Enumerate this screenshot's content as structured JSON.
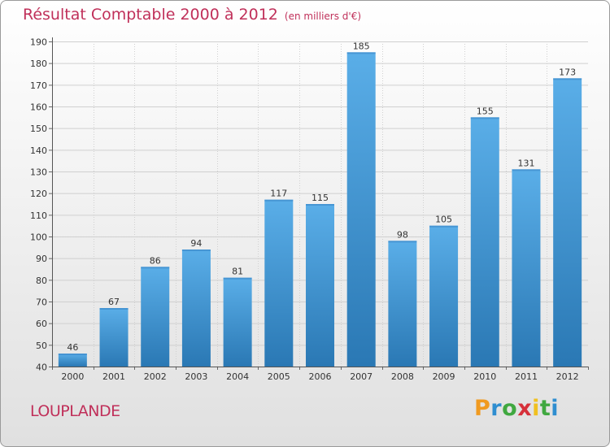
{
  "header": {
    "title": "Résultat Comptable 2000 à 2012",
    "subtitle": "(en milliers d'€)"
  },
  "footer": {
    "town": "LOUPLANDE",
    "logo": {
      "p": "P",
      "r": "r",
      "o": "o",
      "x": "x",
      "i1": "i",
      "t": "t",
      "i2": "i"
    }
  },
  "colors": {
    "title": "#c0305a",
    "bar_top": "#5aaee8",
    "bar_bottom": "#2a78b4",
    "grid": "#d0d0d0"
  },
  "chart_data": {
    "type": "bar",
    "title": "Résultat Comptable 2000 à 2012",
    "subtitle": "(en milliers d'€)",
    "categories": [
      "2000",
      "2001",
      "2002",
      "2003",
      "2004",
      "2005",
      "2006",
      "2007",
      "2008",
      "2009",
      "2010",
      "2011",
      "2012"
    ],
    "values": [
      46,
      67,
      86,
      94,
      81,
      117,
      115,
      185,
      98,
      105,
      155,
      131,
      173
    ],
    "ylim": [
      40,
      190
    ],
    "yticks": [
      40,
      50,
      60,
      70,
      80,
      90,
      100,
      110,
      120,
      130,
      140,
      150,
      160,
      170,
      180,
      190
    ],
    "xlabel": "",
    "ylabel": "",
    "grid": true
  }
}
